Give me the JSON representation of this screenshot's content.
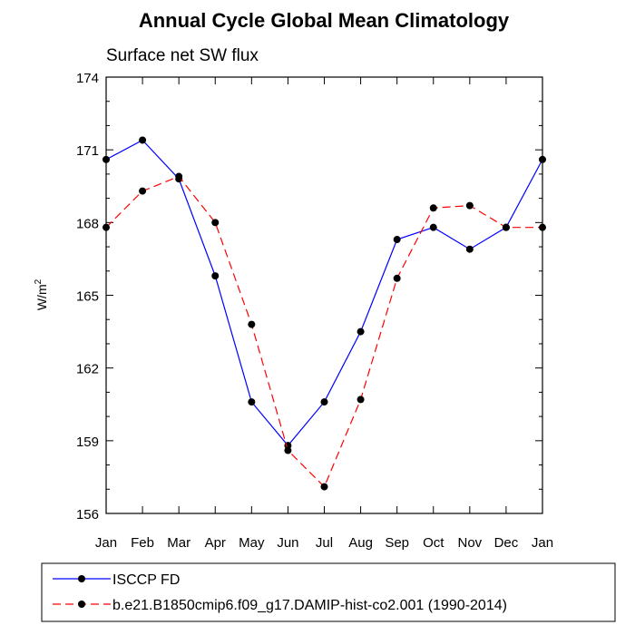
{
  "chart_data": {
    "type": "line",
    "title": "Annual Cycle Global Mean Climatology",
    "subtitle": "Surface net SW flux",
    "xlabel": "",
    "ylabel": "W/m",
    "ylabel_superscript": "2",
    "categories": [
      "Jan",
      "Feb",
      "Mar",
      "Apr",
      "May",
      "Jun",
      "Jul",
      "Aug",
      "Sep",
      "Oct",
      "Nov",
      "Dec",
      "Jan"
    ],
    "ylim": [
      156,
      174
    ],
    "yticks": [
      "156",
      "159",
      "162",
      "165",
      "168",
      "171",
      "174"
    ],
    "series": [
      {
        "name": "ISCCP FD",
        "color": "#0000ff",
        "dash": "solid",
        "values": [
          170.6,
          171.4,
          169.8,
          165.8,
          160.6,
          158.8,
          160.6,
          163.5,
          167.3,
          167.8,
          166.9,
          167.8,
          170.6
        ]
      },
      {
        "name": "b.e21.B1850cmip6.f09_g17.DAMIP-hist-co2.001 (1990-2014)",
        "color": "#ff0000",
        "dash": "dashed",
        "values": [
          167.8,
          169.3,
          169.9,
          168.0,
          163.8,
          158.6,
          157.1,
          160.7,
          165.7,
          168.6,
          168.7,
          167.8,
          167.8
        ]
      }
    ],
    "legend_position": "bottom-left"
  }
}
